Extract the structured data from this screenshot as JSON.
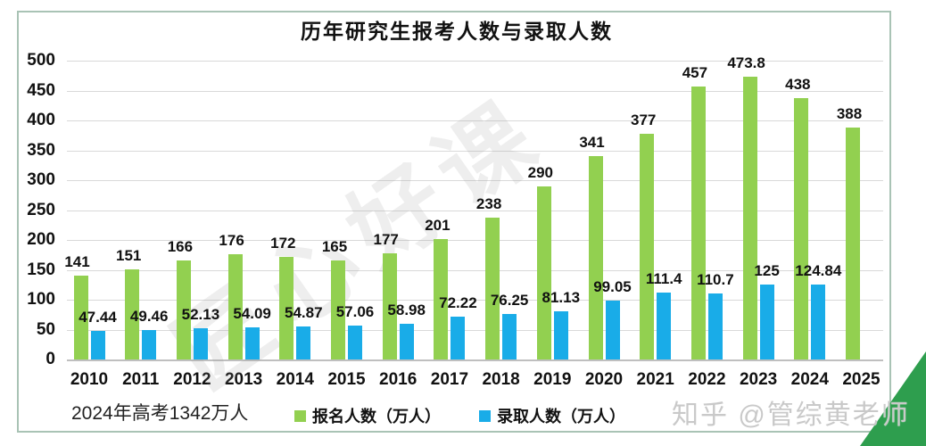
{
  "title": "历年研究生报考人数与录取人数",
  "caption": "2024年高考1342万人",
  "legend": [
    {
      "label": "报名人数（万人）",
      "color": "#92d050"
    },
    {
      "label": "录取人数（万人）",
      "color": "#19ace8"
    }
  ],
  "watermarks": {
    "diagonal": "匠心好课",
    "credit": "知乎 @管综黄老师"
  },
  "colors": {
    "applicants_bar": "#92d050",
    "admitted_bar": "#19ace8",
    "gridline": "#d9d9d9",
    "axis_line": "#bfbfbf",
    "frame_border": "#a9c3b5",
    "corner_triangle": "#2e9e4e",
    "watermark_gray": "#c9c9c9"
  },
  "chart_data": {
    "type": "bar",
    "title": "历年研究生报考人数与录取人数",
    "categories": [
      "2010",
      "2011",
      "2012",
      "2013",
      "2014",
      "2015",
      "2016",
      "2017",
      "2018",
      "2019",
      "2020",
      "2021",
      "2022",
      "2023",
      "2024",
      "2025"
    ],
    "series": [
      {
        "name": "报名人数（万人）",
        "color": "#92d050",
        "values": [
          141,
          151,
          166,
          176,
          172,
          165,
          177,
          201,
          238,
          290,
          341,
          377,
          457,
          473.8,
          438,
          388
        ]
      },
      {
        "name": "录取人数（万人）",
        "color": "#19ace8",
        "values": [
          47.44,
          49.46,
          52.13,
          54.09,
          54.87,
          57.06,
          58.98,
          72.22,
          76.25,
          81.13,
          99.05,
          111.4,
          110.7,
          125,
          124.84,
          null
        ]
      }
    ],
    "xlabel": "",
    "ylabel": "",
    "ylim": [
      0,
      500
    ],
    "ytick_step": 50,
    "grid": true,
    "legend_position": "bottom",
    "data_labels": true
  }
}
